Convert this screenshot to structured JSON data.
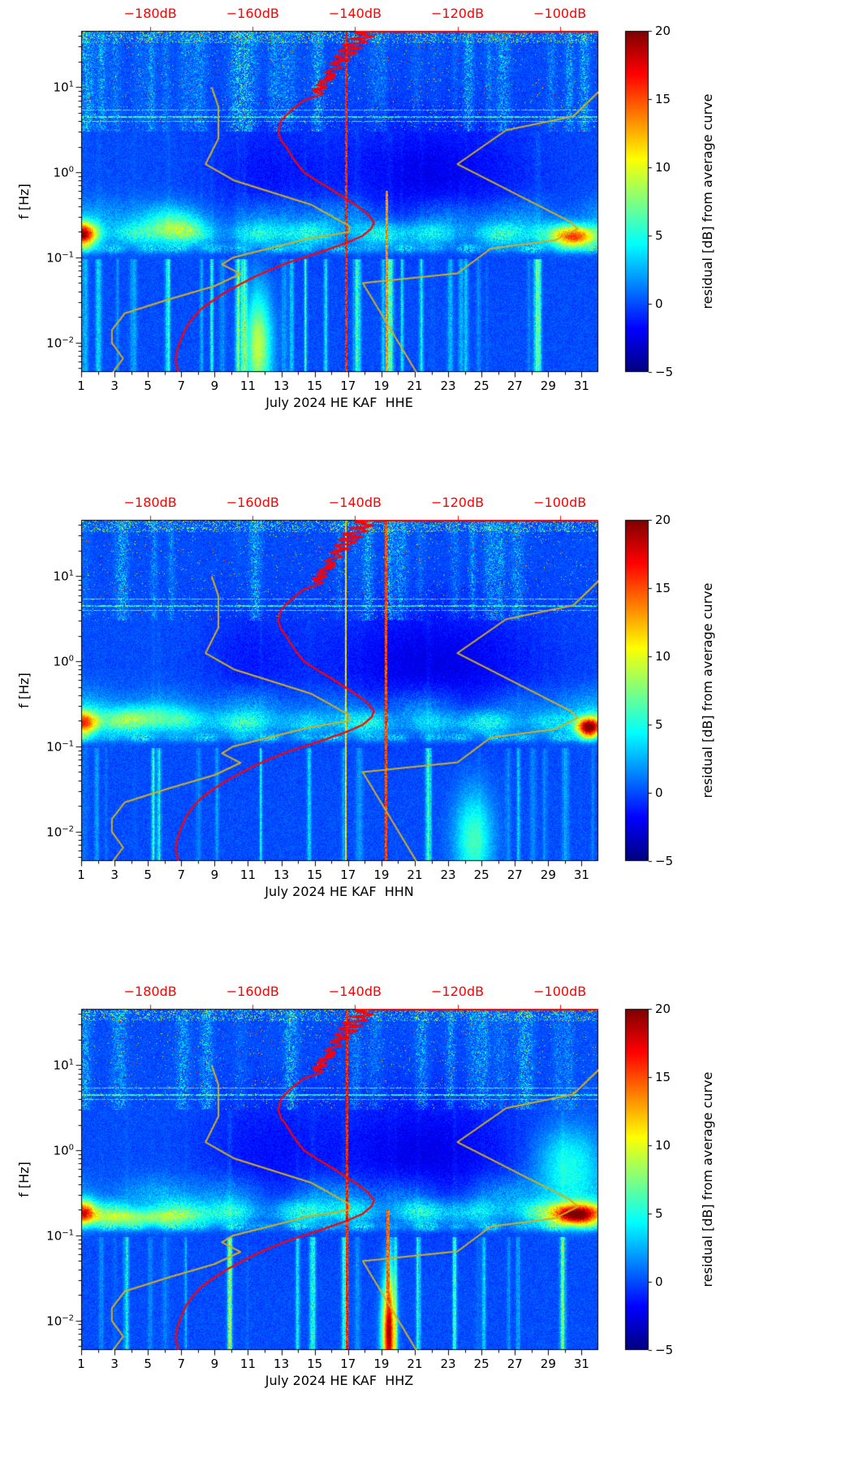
{
  "figure": {
    "station": "HE KAF",
    "month": "July 2024",
    "channels": [
      "HHE",
      "HHN",
      "HHZ"
    ]
  },
  "overlay_curves": {
    "color_average": "#ff0000",
    "color_models": "#cfae24",
    "top_edge_segment_db": [
      -140,
      -92.5
    ],
    "average_psd_db": [
      [
        46,
        -137
      ],
      [
        43,
        -140
      ],
      [
        40,
        -136.5
      ],
      [
        37,
        -141
      ],
      [
        34,
        -137.5
      ],
      [
        31,
        -142
      ],
      [
        29,
        -138.5
      ],
      [
        27,
        -143
      ],
      [
        25,
        -140
      ],
      [
        23,
        -144
      ],
      [
        21,
        -141
      ],
      [
        19,
        -145
      ],
      [
        17,
        -142.5
      ],
      [
        15,
        -146
      ],
      [
        13,
        -144
      ],
      [
        11.5,
        -147
      ],
      [
        10,
        -145.5
      ],
      [
        9,
        -148
      ],
      [
        8,
        -147
      ],
      [
        7,
        -150
      ],
      [
        6,
        -151.5
      ],
      [
        5,
        -153
      ],
      [
        4,
        -154.5
      ],
      [
        3,
        -155
      ],
      [
        2.4,
        -154.5
      ],
      [
        2,
        -153.5
      ],
      [
        1.6,
        -152.5
      ],
      [
        1.3,
        -151.5
      ],
      [
        1,
        -150
      ],
      [
        0.8,
        -147.5
      ],
      [
        0.65,
        -145
      ],
      [
        0.5,
        -142
      ],
      [
        0.4,
        -139.5
      ],
      [
        0.32,
        -137.5
      ],
      [
        0.26,
        -136.3
      ],
      [
        0.22,
        -136.8
      ],
      [
        0.18,
        -138.5
      ],
      [
        0.15,
        -141.5
      ],
      [
        0.12,
        -146
      ],
      [
        0.1,
        -150
      ],
      [
        0.085,
        -153.5
      ],
      [
        0.07,
        -157
      ],
      [
        0.06,
        -159.5
      ],
      [
        0.05,
        -162
      ],
      [
        0.04,
        -165
      ],
      [
        0.032,
        -167.5
      ],
      [
        0.025,
        -170
      ],
      [
        0.02,
        -171.5
      ],
      [
        0.015,
        -173
      ],
      [
        0.011,
        -174
      ],
      [
        0.008,
        -174.8
      ],
      [
        0.006,
        -175
      ],
      [
        0.0045,
        -174.5
      ]
    ],
    "nlnm_db": [
      [
        10,
        -168
      ],
      [
        5.88,
        -166.7
      ],
      [
        2.5,
        -166.7
      ],
      [
        1.25,
        -169.2
      ],
      [
        0.806,
        -163.7
      ],
      [
        0.417,
        -148.6
      ],
      [
        0.233,
        -141.1
      ],
      [
        0.2,
        -141.1
      ],
      [
        0.167,
        -149
      ],
      [
        0.1,
        -163.8
      ],
      [
        0.083,
        -166
      ],
      [
        0.064,
        -162.4
      ],
      [
        0.046,
        -167.5
      ],
      [
        0.032,
        -176.5
      ],
      [
        0.022,
        -185
      ],
      [
        0.014,
        -187.5
      ],
      [
        0.0099,
        -187.5
      ],
      [
        0.0065,
        -185.3
      ],
      [
        0.0043,
        -187.5
      ]
    ],
    "nhnm_db": [
      [
        10,
        -91.5
      ],
      [
        4.55,
        -97.4
      ],
      [
        3.13,
        -110.5
      ],
      [
        1.25,
        -120
      ],
      [
        0.263,
        -98
      ],
      [
        0.217,
        -96.5
      ],
      [
        0.159,
        -101
      ],
      [
        0.127,
        -113.5
      ],
      [
        0.065,
        -120
      ],
      [
        0.05,
        -138.5
      ],
      [
        0.0028,
        -126
      ]
    ]
  },
  "chart_data": [
    {
      "type": "heatmap",
      "title": "",
      "xlabel": "July 2024 HE KAF  HHE",
      "ylabel": "f [Hz]",
      "x_ticks": [
        1,
        3,
        5,
        7,
        9,
        11,
        13,
        15,
        17,
        19,
        21,
        23,
        25,
        27,
        29,
        31
      ],
      "x_range_days": [
        1,
        32
      ],
      "y_tick_exponents": [
        -2,
        -1,
        0,
        1
      ],
      "f_range_hz": [
        0.0045,
        46
      ],
      "top_axis": {
        "tick_labels": [
          "−180dB",
          "−160dB",
          "−140dB",
          "−120dB",
          "−100dB"
        ],
        "tick_values_db": [
          -180,
          -160,
          -140,
          -120,
          -100
        ],
        "range_db": [
          -193.5,
          -92.5
        ],
        "color": "#ff0000"
      },
      "colorbar": {
        "label": "residual [dB] from average curve",
        "tick_labels": [
          "20",
          "15",
          "10",
          "5",
          "0",
          "−5"
        ],
        "tick_values": [
          20,
          15,
          10,
          5,
          0,
          -5
        ],
        "range": [
          -5,
          20
        ],
        "colormap": "jet"
      },
      "texture_seed": 101,
      "field": {
        "dark_regions": [
          {
            "day": 22,
            "day_width": 4,
            "amp": 2.3
          },
          {
            "day": 12,
            "day_width": 2.5,
            "amp": 1.4
          }
        ],
        "micro_band": {
          "center_logf": -0.73,
          "width_logf": 0.1,
          "base_amp": 3.2
        },
        "micro_band2": {
          "center_logf": -0.52,
          "width_logf": 0.16,
          "base_amp": 1.6
        },
        "blobs": [
          {
            "day": 1.1,
            "day_width": 0.6,
            "center_logf": -0.73,
            "width_logf": 0.1,
            "amp": 15
          },
          {
            "day": 30.6,
            "day_width": 0.9,
            "center_logf": -0.76,
            "width_logf": 0.09,
            "amp": 13
          },
          {
            "day": 11.6,
            "day_width": 0.55,
            "center_logf": -2.05,
            "width_logf": 0.45,
            "amp": 9
          },
          {
            "day": 6.5,
            "day_width": 1.2,
            "center_logf": -0.62,
            "width_logf": 0.12,
            "amp": 4
          }
        ],
        "vlines": [
          {
            "day": 16.85,
            "width": 0.07,
            "f_min": 0.0045,
            "f_max": 46,
            "amp": 17
          },
          {
            "day": 19.3,
            "width": 0.06,
            "f_min": 0.0045,
            "f_max": 0.6,
            "amp": 14
          }
        ]
      }
    },
    {
      "type": "heatmap",
      "title": "",
      "xlabel": "July 2024 HE KAF  HHN",
      "ylabel": "f [Hz]",
      "x_ticks": [
        1,
        3,
        5,
        7,
        9,
        11,
        13,
        15,
        17,
        19,
        21,
        23,
        25,
        27,
        29,
        31
      ],
      "x_range_days": [
        1,
        32
      ],
      "y_tick_exponents": [
        -2,
        -1,
        0,
        1
      ],
      "f_range_hz": [
        0.0045,
        46
      ],
      "top_axis": {
        "tick_labels": [
          "−180dB",
          "−160dB",
          "−140dB",
          "−120dB",
          "−100dB"
        ],
        "tick_values_db": [
          -180,
          -160,
          -140,
          -120,
          -100
        ],
        "range_db": [
          -193.5,
          -92.5
        ],
        "color": "#ff0000"
      },
      "colorbar": {
        "label": "residual [dB] from average curve",
        "tick_labels": [
          "20",
          "15",
          "10",
          "5",
          "0",
          "−5"
        ],
        "tick_values": [
          20,
          15,
          10,
          5,
          0,
          -5
        ],
        "range": [
          -5,
          20
        ],
        "colormap": "jet"
      },
      "texture_seed": 202,
      "field": {
        "dark_regions": [
          {
            "day": 22,
            "day_width": 4.5,
            "amp": 2.5
          },
          {
            "day": 11,
            "day_width": 2,
            "amp": 1.2
          }
        ],
        "micro_band": {
          "center_logf": -0.73,
          "width_logf": 0.1,
          "base_amp": 3.0
        },
        "micro_band2": {
          "center_logf": -0.52,
          "width_logf": 0.16,
          "base_amp": 1.5
        },
        "blobs": [
          {
            "day": 1.1,
            "day_width": 0.6,
            "center_logf": -0.73,
            "width_logf": 0.1,
            "amp": 13
          },
          {
            "day": 31.4,
            "day_width": 0.5,
            "center_logf": -0.78,
            "width_logf": 0.08,
            "amp": 18
          },
          {
            "day": 24.5,
            "day_width": 0.8,
            "center_logf": -2.1,
            "width_logf": 0.4,
            "amp": 6
          },
          {
            "day": 5,
            "day_width": 2,
            "center_logf": -0.65,
            "width_logf": 0.1,
            "amp": 4
          }
        ],
        "vlines": [
          {
            "day": 16.85,
            "width": 0.05,
            "f_min": 0.0045,
            "f_max": 46,
            "amp": 12
          },
          {
            "day": 19.25,
            "width": 0.07,
            "f_min": 0.0045,
            "f_max": 46,
            "amp": 16
          }
        ]
      }
    },
    {
      "type": "heatmap",
      "title": "",
      "xlabel": "July 2024 HE KAF  HHZ",
      "ylabel": "f [Hz]",
      "x_ticks": [
        1,
        3,
        5,
        7,
        9,
        11,
        13,
        15,
        17,
        19,
        21,
        23,
        25,
        27,
        29,
        31
      ],
      "x_range_days": [
        1,
        32
      ],
      "y_tick_exponents": [
        -2,
        -1,
        0,
        1
      ],
      "f_range_hz": [
        0.0045,
        46
      ],
      "top_axis": {
        "tick_labels": [
          "−180dB",
          "−160dB",
          "−140dB",
          "−120dB",
          "−100dB"
        ],
        "tick_values_db": [
          -180,
          -160,
          -140,
          -120,
          -100
        ],
        "range_db": [
          -193.5,
          -92.5
        ],
        "color": "#ff0000"
      },
      "colorbar": {
        "label": "residual [dB] from average curve",
        "tick_labels": [
          "20",
          "15",
          "10",
          "5",
          "0",
          "−5"
        ],
        "tick_values": [
          20,
          15,
          10,
          5,
          0,
          -5
        ],
        "range": [
          -5,
          20
        ],
        "colormap": "jet"
      },
      "texture_seed": 303,
      "field": {
        "dark_regions": [
          {
            "day": 21.5,
            "day_width": 4,
            "amp": 2.4
          },
          {
            "day": 12,
            "day_width": 2.5,
            "amp": 1.5
          }
        ],
        "micro_band": {
          "center_logf": -0.73,
          "width_logf": 0.1,
          "base_amp": 3.2
        },
        "micro_band2": {
          "center_logf": -0.52,
          "width_logf": 0.16,
          "base_amp": 1.6
        },
        "blobs": [
          {
            "day": 30.7,
            "day_width": 1.0,
            "center_logf": -0.76,
            "width_logf": 0.09,
            "amp": 18
          },
          {
            "day": 30.2,
            "day_width": 1.4,
            "center_logf": -0.15,
            "width_logf": 0.3,
            "amp": 5
          },
          {
            "day": 19.4,
            "day_width": 0.28,
            "center_logf": -2.15,
            "width_logf": 0.45,
            "amp": 17
          },
          {
            "day": 4.5,
            "day_width": 2.5,
            "center_logf": -0.8,
            "width_logf": 0.07,
            "amp": 6
          },
          {
            "day": 1.1,
            "day_width": 0.5,
            "center_logf": -0.73,
            "width_logf": 0.1,
            "amp": 12
          }
        ],
        "vlines": [
          {
            "day": 16.9,
            "width": 0.07,
            "f_min": 0.0045,
            "f_max": 46,
            "amp": 17
          },
          {
            "day": 19.35,
            "width": 0.1,
            "f_min": 0.0045,
            "f_max": 0.2,
            "amp": 15
          }
        ]
      }
    }
  ]
}
